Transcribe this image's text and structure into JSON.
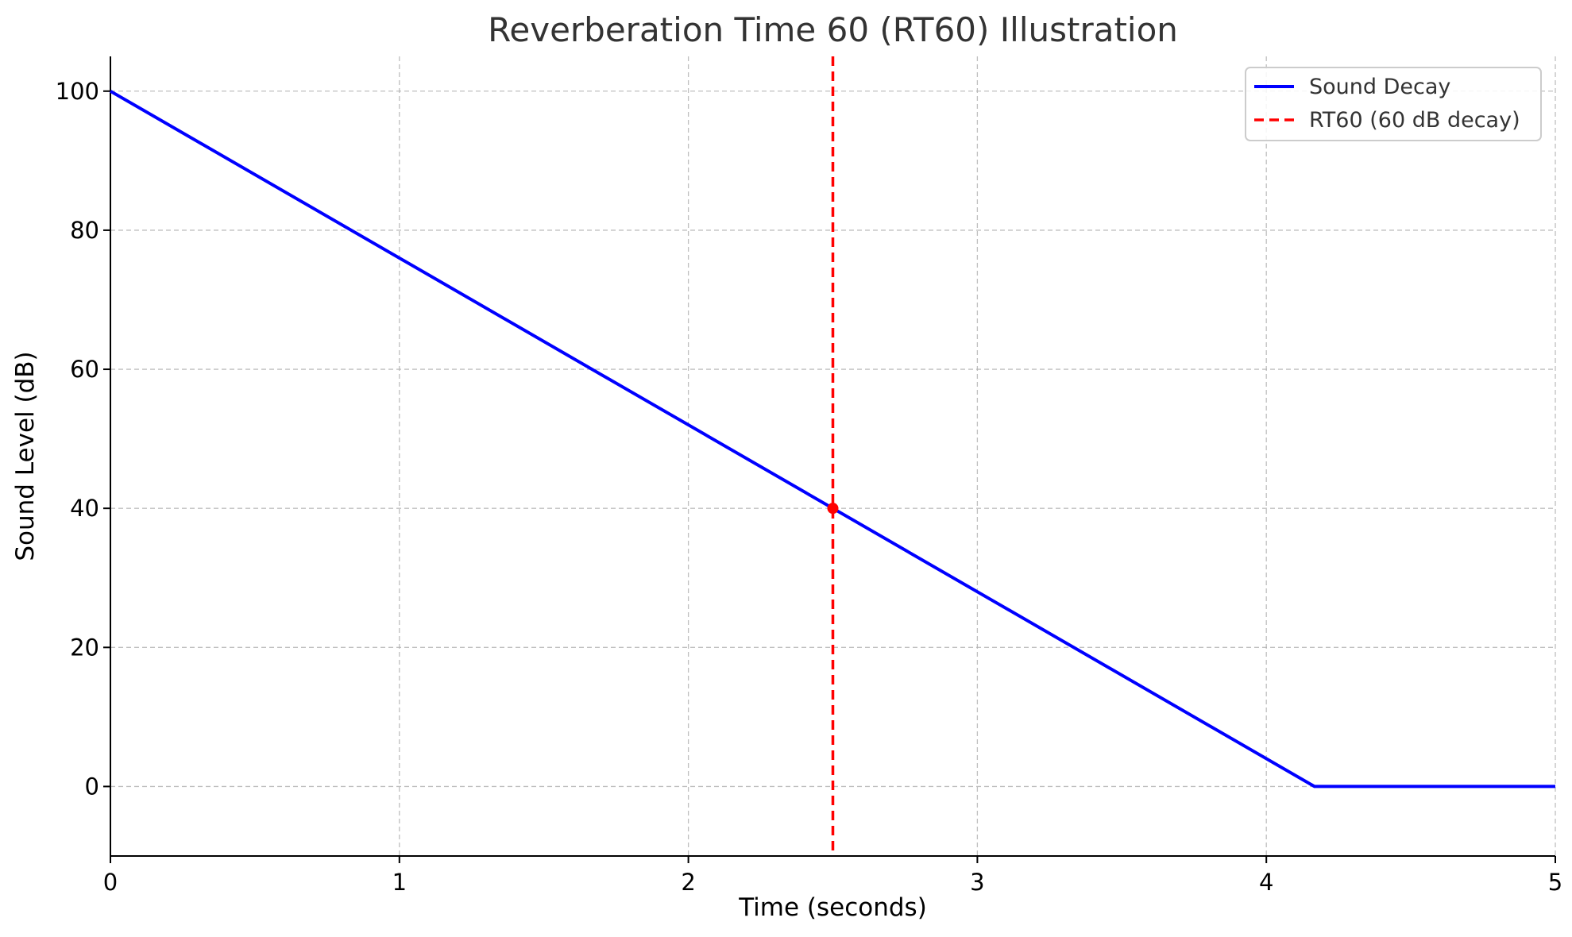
{
  "chart_data": {
    "type": "line",
    "title": "Reverberation Time 60 (RT60) Illustration",
    "xlabel": "Time (seconds)",
    "ylabel": "Sound Level (dB)",
    "xlim": [
      0,
      5
    ],
    "ylim": [
      -10,
      105
    ],
    "xticks": [
      0,
      1,
      2,
      3,
      4,
      5
    ],
    "yticks": [
      0,
      20,
      40,
      60,
      80,
      100
    ],
    "grid": true,
    "legend_position": "top-right",
    "series": [
      {
        "name": "Sound Decay",
        "color": "#0000ff",
        "style": "solid",
        "x": [
          0,
          4.1667,
          5
        ],
        "y": [
          100,
          0,
          0
        ]
      }
    ],
    "reference_lines": [
      {
        "name": "RT60 (60 dB decay)",
        "color": "#ff0000",
        "style": "dashed",
        "orientation": "vertical",
        "x": 2.5
      }
    ],
    "markers": [
      {
        "x": 2.5,
        "y": 40,
        "color": "#ff0000"
      }
    ]
  }
}
